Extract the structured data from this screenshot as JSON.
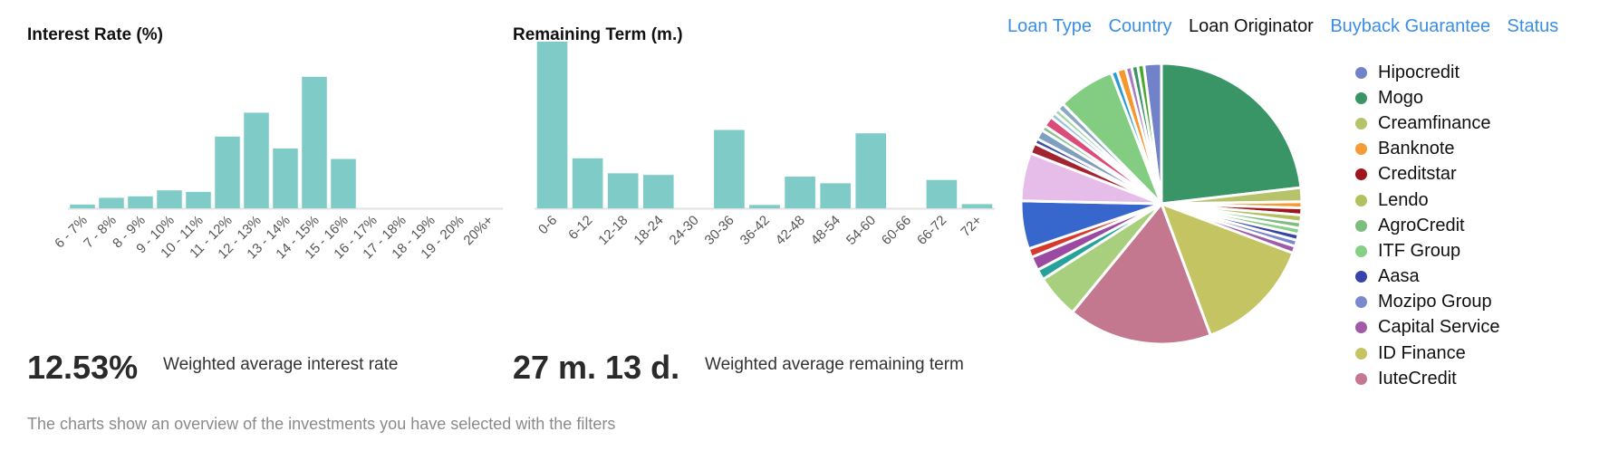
{
  "bar_color": "#7ecbc8",
  "footer": "The charts show an overview of the investments you have selected with the filters",
  "tabs": [
    {
      "label": "Loan Type",
      "active": false
    },
    {
      "label": "Country",
      "active": false
    },
    {
      "label": "Loan Originator",
      "active": true
    },
    {
      "label": "Buyback Guarantee",
      "active": false
    },
    {
      "label": "Status",
      "active": false
    }
  ],
  "interest": {
    "value": "12.53%",
    "caption": "Weighted average interest rate"
  },
  "term": {
    "value": "27 m. 13 d.",
    "caption": "Weighted average remaining term"
  },
  "chart_data": [
    {
      "type": "bar",
      "title": "Interest Rate (%)",
      "categories": [
        "6 - 7%",
        "7 - 8%",
        "8 - 9%",
        "9 - 10%",
        "10 - 11%",
        "11 - 12%",
        "12 - 13%",
        "13 - 14%",
        "14 - 15%",
        "15 - 16%",
        "16 - 17%",
        "17 - 18%",
        "18 - 19%",
        "19 - 20%",
        "20%+"
      ],
      "values": [
        2.5,
        7,
        8,
        12,
        11,
        48,
        64,
        40,
        88,
        33,
        0,
        0,
        0,
        0,
        0
      ],
      "ylim": [
        0,
        100
      ],
      "grid": false
    },
    {
      "type": "bar",
      "title": "Remaining Term (m.)",
      "categories": [
        "0-6",
        "6-12",
        "12-18",
        "18-24",
        "24-30",
        "30-36",
        "36-42",
        "42-48",
        "48-54",
        "54-60",
        "60-66",
        "66-72",
        "72+"
      ],
      "values": [
        100,
        30,
        21,
        20,
        0,
        47,
        2,
        19,
        15,
        45,
        0,
        17,
        2.5
      ],
      "ylim": [
        0,
        100
      ],
      "grid": false
    },
    {
      "type": "pie",
      "legend_position": "right",
      "legend": [
        {
          "label": "Hipocredit",
          "color": "#7282c8"
        },
        {
          "label": "Mogo",
          "color": "#3a9566"
        },
        {
          "label": "Creamfinance",
          "color": "#b6c36a"
        },
        {
          "label": "Banknote",
          "color": "#f59a35"
        },
        {
          "label": "Creditstar",
          "color": "#a0161d"
        },
        {
          "label": "Lendo",
          "color": "#b3c060"
        },
        {
          "label": "AgroCredit",
          "color": "#7dbd7d"
        },
        {
          "label": "ITF Group",
          "color": "#87cf84"
        },
        {
          "label": "Aasa",
          "color": "#3643a8"
        },
        {
          "label": "Mozipo Group",
          "color": "#7a88cc"
        },
        {
          "label": "Capital Service",
          "color": "#a05aa6"
        },
        {
          "label": "ID Finance",
          "color": "#c5c463"
        },
        {
          "label": "IuteCredit",
          "color": "#c47890"
        }
      ],
      "slices": [
        {
          "value": 2.0,
          "color": "#7282c8"
        },
        {
          "value": 23.0,
          "color": "#3a9566"
        },
        {
          "value": 1.6,
          "color": "#b6c36a"
        },
        {
          "value": 0.7,
          "color": "#f59a35"
        },
        {
          "value": 0.8,
          "color": "#a0161d"
        },
        {
          "value": 0.8,
          "color": "#b3c060"
        },
        {
          "value": 0.7,
          "color": "#7dbd7d"
        },
        {
          "value": 0.7,
          "color": "#87cf84"
        },
        {
          "value": 0.7,
          "color": "#3643a8"
        },
        {
          "value": 0.7,
          "color": "#7a88cc"
        },
        {
          "value": 0.8,
          "color": "#a05aa6"
        },
        {
          "value": 13.5,
          "color": "#c5c463"
        },
        {
          "value": 16.5,
          "color": "#c47890"
        },
        {
          "value": 5.0,
          "color": "#a8cf7e"
        },
        {
          "value": 1.2,
          "color": "#27a29a"
        },
        {
          "value": 1.6,
          "color": "#9a4aa0"
        },
        {
          "value": 1.0,
          "color": "#d73a2c"
        },
        {
          "value": 5.5,
          "color": "#3766cc"
        },
        {
          "value": 5.5,
          "color": "#e6bde8"
        },
        {
          "value": 1.2,
          "color": "#a32431"
        },
        {
          "value": 0.6,
          "color": "#3c4fa8"
        },
        {
          "value": 1.1,
          "color": "#7f9fc1"
        },
        {
          "value": 0.6,
          "color": "#8dc08d"
        },
        {
          "value": 1.2,
          "color": "#dc4c7a"
        },
        {
          "value": 0.6,
          "color": "#9bc4dc"
        },
        {
          "value": 0.6,
          "color": "#a6d4a6"
        },
        {
          "value": 0.8,
          "color": "#8aa7c4"
        },
        {
          "value": 6.5,
          "color": "#82cd82"
        },
        {
          "value": 0.7,
          "color": "#2b9bd6"
        },
        {
          "value": 1.0,
          "color": "#f5962e"
        },
        {
          "value": 0.7,
          "color": "#a77cbc"
        },
        {
          "value": 0.7,
          "color": "#3a9566"
        },
        {
          "value": 0.7,
          "color": "#4aa62f"
        }
      ]
    }
  ]
}
